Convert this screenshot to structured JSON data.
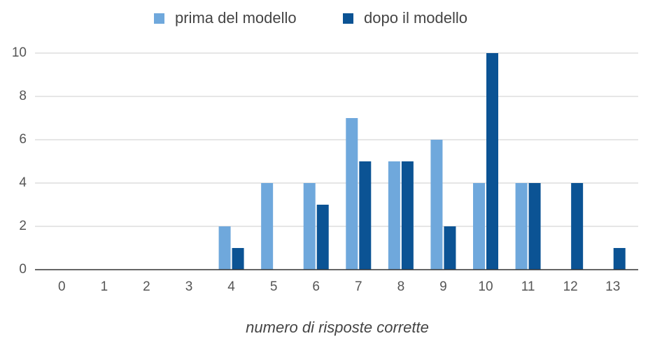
{
  "chart_data": {
    "type": "bar",
    "x_label": "numero di risposte corrette",
    "categories": [
      "0",
      "1",
      "2",
      "3",
      "4",
      "5",
      "6",
      "7",
      "8",
      "9",
      "10",
      "11",
      "12",
      "13"
    ],
    "series": [
      {
        "name": "prima del modello",
        "color": "#6fa8dc",
        "values": [
          0,
          0,
          0,
          0,
          2,
          4,
          4,
          7,
          5,
          6,
          4,
          4,
          0,
          0
        ]
      },
      {
        "name": "dopo il modello",
        "color": "#0b5394",
        "values": [
          0,
          0,
          0,
          0,
          1,
          0,
          3,
          5,
          5,
          2,
          10,
          4,
          4,
          1
        ]
      }
    ],
    "ylim": [
      0,
      10
    ],
    "yticks": [
      0,
      2,
      4,
      6,
      8,
      10
    ],
    "grid": true,
    "legend": "top"
  }
}
